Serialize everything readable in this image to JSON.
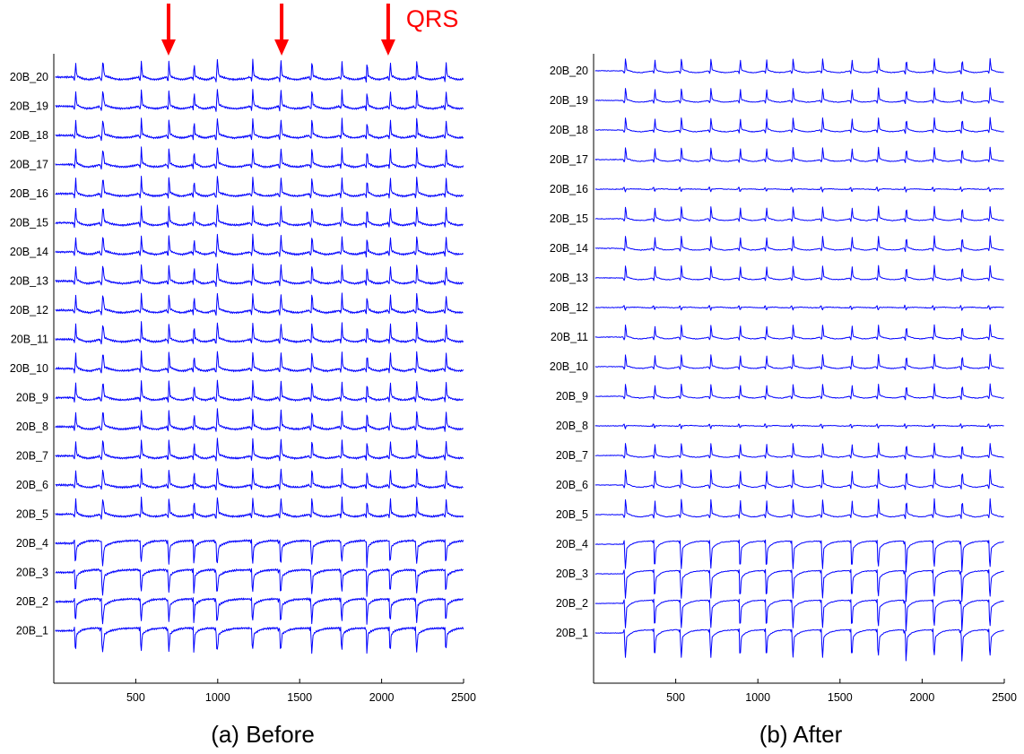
{
  "colors": {
    "trace": "#0000ff",
    "annotation": "#ff0000",
    "axis": "#000000"
  },
  "chart_data": [
    {
      "type": "line",
      "caption": "(a) Before",
      "channels": [
        "20B_20",
        "20B_19",
        "20B_18",
        "20B_17",
        "20B_16",
        "20B_15",
        "20B_14",
        "20B_13",
        "20B_12",
        "20B_11",
        "20B_10",
        "20B_9",
        "20B_8",
        "20B_7",
        "20B_6",
        "20B_5",
        "20B_4",
        "20B_3",
        "20B_2",
        "20B_1"
      ],
      "xlim": [
        0,
        2500
      ],
      "xticks": [
        500,
        1000,
        1500,
        2000,
        2500
      ],
      "beat_starts": [
        120,
        280,
        520,
        690,
        845,
        980,
        1200,
        1370,
        1560,
        1745,
        1900,
        2040,
        2200,
        2380
      ],
      "beat_period_approx": 160,
      "annotation": {
        "label": "QRS",
        "arrow_x": [
          700,
          1390,
          2040
        ]
      }
    },
    {
      "type": "line",
      "caption": "(b) After",
      "channels": [
        "20B_20",
        "20B_19",
        "20B_18",
        "20B_17",
        "20B_16",
        "20B_15",
        "20B_14",
        "20B_13",
        "20B_12",
        "20B_11",
        "20B_10",
        "20B_9",
        "20B_8",
        "20B_7",
        "20B_6",
        "20B_5",
        "20B_4",
        "20B_3",
        "20B_2",
        "20B_1"
      ],
      "xlim": [
        0,
        2500
      ],
      "xticks": [
        500,
        1000,
        1500,
        2000,
        2500
      ],
      "beat_starts": [
        180,
        360,
        520,
        700,
        880,
        1040,
        1200,
        1380,
        1560,
        1720,
        1890,
        2060,
        2230,
        2400
      ],
      "beat_period_approx": 170
    }
  ]
}
